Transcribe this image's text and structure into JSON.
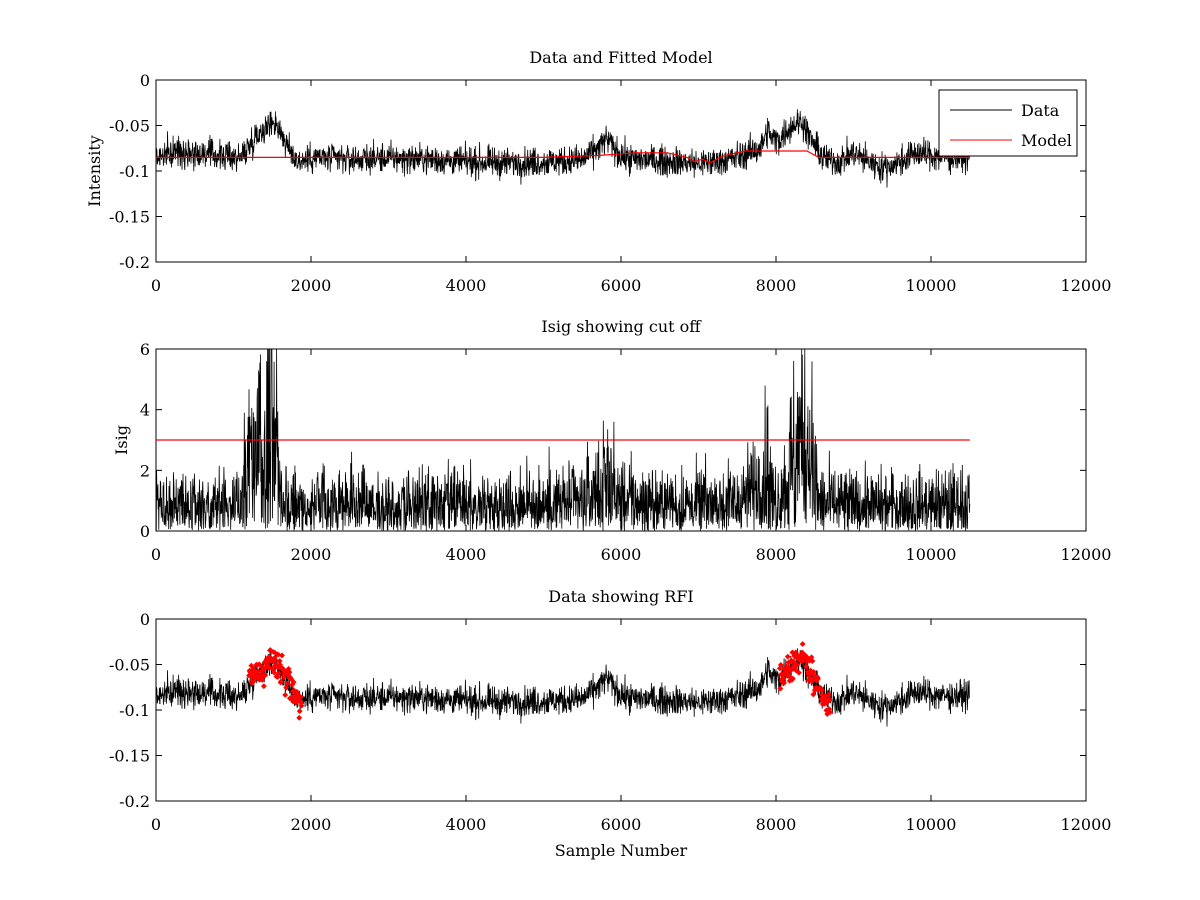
{
  "chart_data": [
    {
      "type": "line",
      "title": "Data and Fitted Model",
      "xlabel": "",
      "ylabel": "Intensity",
      "xlim": [
        0,
        12000
      ],
      "ylim": [
        -0.2,
        0
      ],
      "xticks": [
        0,
        2000,
        4000,
        6000,
        8000,
        10000,
        12000
      ],
      "xtick_labels": [
        "0",
        "2000",
        "4000",
        "6000",
        "8000",
        "10000",
        "12000"
      ],
      "yticks": [
        -0.2,
        -0.15,
        -0.1,
        -0.05,
        0
      ],
      "ytick_labels": [
        "-0.2",
        "-0.15",
        "-0.1",
        "-0.05",
        "0"
      ],
      "legend": {
        "placement": "top-right",
        "entries": [
          "Data",
          "Model"
        ]
      },
      "series": [
        {
          "name": "Data",
          "color": "#000000",
          "style": "noisy",
          "noise": 0.008,
          "x": [
            0,
            300,
            800,
            1100,
            1300,
            1450,
            1520,
            1600,
            1700,
            1850,
            2000,
            2500,
            3000,
            3500,
            4000,
            4500,
            5000,
            5500,
            5700,
            5820,
            5950,
            6100,
            6400,
            6800,
            7000,
            7200,
            7500,
            7800,
            7900,
            7950,
            8050,
            8200,
            8330,
            8450,
            8600,
            8800,
            9000,
            9200,
            9400,
            9600,
            9800,
            10000,
            10250,
            10500
          ],
          "y": [
            -0.085,
            -0.078,
            -0.083,
            -0.085,
            -0.06,
            -0.05,
            -0.045,
            -0.055,
            -0.075,
            -0.09,
            -0.085,
            -0.087,
            -0.086,
            -0.087,
            -0.09,
            -0.091,
            -0.09,
            -0.088,
            -0.075,
            -0.065,
            -0.08,
            -0.087,
            -0.088,
            -0.09,
            -0.092,
            -0.09,
            -0.085,
            -0.075,
            -0.055,
            -0.065,
            -0.065,
            -0.05,
            -0.045,
            -0.065,
            -0.085,
            -0.09,
            -0.08,
            -0.09,
            -0.097,
            -0.09,
            -0.08,
            -0.083,
            -0.085,
            -0.083
          ]
        },
        {
          "name": "Model",
          "color": "#ff0000",
          "style": "line",
          "x": [
            0,
            5000,
            5700,
            6200,
            6600,
            6850,
            6950,
            7050,
            7150,
            7300,
            7600,
            8000,
            8400,
            8550,
            9000,
            9500,
            10500
          ],
          "y": [
            -0.085,
            -0.085,
            -0.083,
            -0.08,
            -0.08,
            -0.085,
            -0.09,
            -0.087,
            -0.091,
            -0.084,
            -0.078,
            -0.078,
            -0.078,
            -0.085,
            -0.085,
            -0.085,
            -0.085
          ]
        }
      ]
    },
    {
      "type": "line",
      "title": "Isig showing cut off",
      "xlabel": "",
      "ylabel": "Isig",
      "xlim": [
        0,
        12000
      ],
      "ylim": [
        0,
        6
      ],
      "xticks": [
        0,
        2000,
        4000,
        6000,
        8000,
        10000,
        12000
      ],
      "xtick_labels": [
        "0",
        "2000",
        "4000",
        "6000",
        "8000",
        "10000",
        "12000"
      ],
      "yticks": [
        0,
        2,
        4,
        6
      ],
      "ytick_labels": [
        "0",
        "2",
        "4",
        "6"
      ],
      "series": [
        {
          "color": "#000000",
          "style": "isig",
          "x": [
            0,
            1100,
            1200,
            1300,
            1400,
            1450,
            1500,
            1550,
            1650,
            1900,
            3000,
            4000,
            5500,
            5750,
            5850,
            5950,
            6500,
            7500,
            7800,
            7900,
            7950,
            8050,
            8250,
            8350,
            8450,
            8550,
            9000,
            10000,
            10500
          ],
          "y": [
            0.8,
            0.8,
            2.0,
            2.8,
            2.9,
            3.6,
            4.4,
            3.2,
            0.9,
            0.8,
            0.8,
            0.8,
            0.9,
            1.3,
            1.5,
            1.0,
            0.8,
            0.9,
            1.4,
            1.9,
            1.0,
            1.0,
            2.4,
            3.1,
            2.4,
            0.9,
            0.8,
            0.8,
            0.9
          ]
        },
        {
          "color": "#ff0000",
          "style": "line",
          "x": [
            0,
            10500
          ],
          "y": [
            3,
            3
          ]
        }
      ]
    },
    {
      "type": "scatter",
      "title": "Data showing RFI",
      "xlabel": "Sample Number",
      "ylabel": "",
      "xlim": [
        0,
        12000
      ],
      "ylim": [
        -0.2,
        0
      ],
      "xticks": [
        0,
        2000,
        4000,
        6000,
        8000,
        10000,
        12000
      ],
      "xtick_labels": [
        "0",
        "2000",
        "4000",
        "6000",
        "8000",
        "10000",
        "12000"
      ],
      "yticks": [
        -0.2,
        -0.15,
        -0.1,
        -0.05,
        0
      ],
      "ytick_labels": [
        "-0.2",
        "-0.15",
        "-0.1",
        "-0.05",
        "0"
      ],
      "series": [
        {
          "color": "#000000",
          "style": "noisy",
          "noise": 0.008,
          "x": [
            0,
            300,
            800,
            1100,
            1300,
            1450,
            1520,
            1600,
            1700,
            1850,
            2000,
            2500,
            3000,
            3500,
            4000,
            4500,
            5000,
            5500,
            5700,
            5820,
            5950,
            6100,
            6400,
            6800,
            7000,
            7200,
            7500,
            7800,
            7900,
            7950,
            8050,
            8200,
            8330,
            8450,
            8600,
            8800,
            9000,
            9200,
            9400,
            9600,
            9800,
            10000,
            10250,
            10500
          ],
          "y": [
            -0.085,
            -0.078,
            -0.083,
            -0.085,
            -0.06,
            -0.05,
            -0.045,
            -0.055,
            -0.075,
            -0.09,
            -0.085,
            -0.087,
            -0.086,
            -0.087,
            -0.09,
            -0.091,
            -0.09,
            -0.088,
            -0.075,
            -0.065,
            -0.08,
            -0.087,
            -0.088,
            -0.09,
            -0.092,
            -0.09,
            -0.085,
            -0.075,
            -0.055,
            -0.065,
            -0.065,
            -0.05,
            -0.045,
            -0.065,
            -0.085,
            -0.09,
            -0.08,
            -0.09,
            -0.097,
            -0.09,
            -0.08,
            -0.083,
            -0.085,
            -0.083
          ]
        },
        {
          "color": "#ff0000",
          "style": "markers",
          "noise": 0.008,
          "segments": [
            {
              "x": [
                1200,
                1300,
                1400,
                1450,
                1520,
                1600,
                1700,
                1800,
                1880
              ],
              "y": [
                -0.065,
                -0.062,
                -0.055,
                -0.048,
                -0.042,
                -0.055,
                -0.07,
                -0.085,
                -0.095
              ]
            },
            {
              "x": [
                8050,
                8150,
                8250,
                8330,
                8400,
                8500,
                8600,
                8700
              ],
              "y": [
                -0.07,
                -0.06,
                -0.048,
                -0.04,
                -0.05,
                -0.07,
                -0.085,
                -0.095
              ]
            }
          ]
        }
      ]
    }
  ]
}
